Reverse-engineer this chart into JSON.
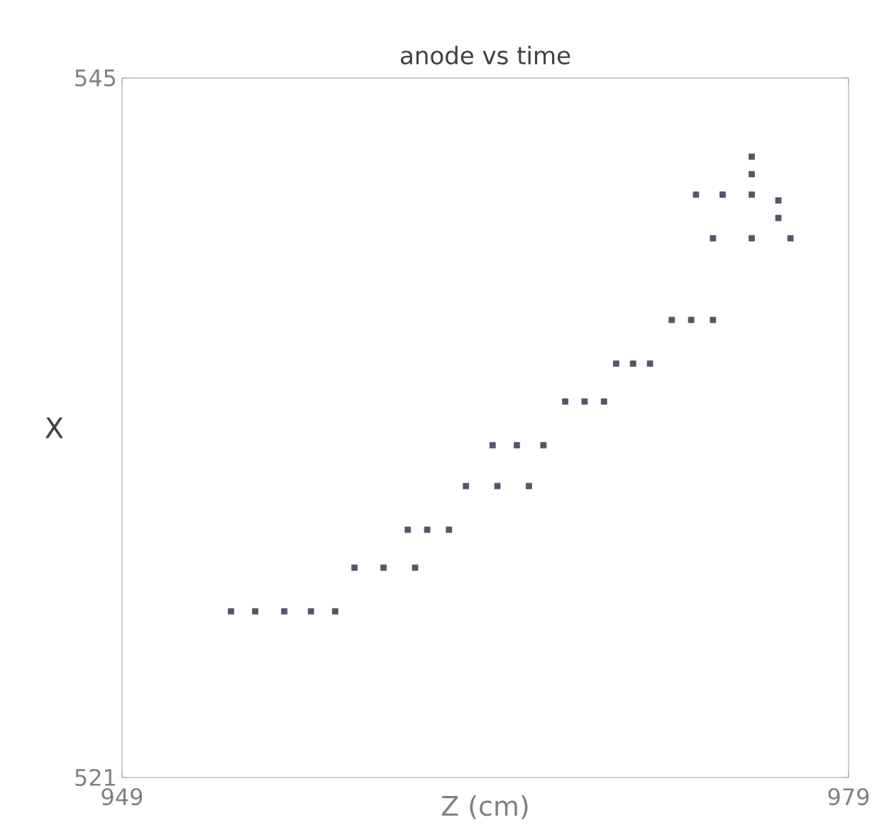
{
  "chart_data": {
    "type": "scatter",
    "title": "anode vs time",
    "xlabel": "Z (cm)",
    "ylabel": "X",
    "xlim": [
      949,
      979
    ],
    "ylim": [
      521,
      545
    ],
    "xticks": [
      949,
      979
    ],
    "yticks": [
      521,
      545
    ],
    "marker": "square",
    "color": "#55556a",
    "x": [
      953.5,
      954.5,
      955.7,
      956.8,
      957.8,
      958.6,
      959.8,
      961.1,
      960.8,
      961.6,
      962.5,
      963.2,
      964.5,
      965.8,
      964.3,
      965.3,
      966.4,
      967.3,
      968.1,
      968.9,
      969.4,
      970.1,
      970.8,
      971.7,
      972.5,
      973.4,
      972.7,
      973.8,
      975.0,
      975.0,
      975.0,
      973.4,
      975.0,
      976.6,
      976.1,
      976.1
    ],
    "values": [
      526.7,
      526.7,
      526.7,
      526.7,
      526.7,
      528.2,
      528.2,
      528.2,
      529.5,
      529.5,
      529.5,
      531.0,
      531.0,
      531.0,
      532.4,
      532.4,
      532.4,
      533.9,
      533.9,
      533.9,
      535.2,
      535.2,
      535.2,
      536.7,
      536.7,
      536.7,
      541.0,
      541.0,
      541.0,
      541.7,
      542.3,
      539.5,
      539.5,
      539.5,
      540.2,
      540.8
    ]
  }
}
